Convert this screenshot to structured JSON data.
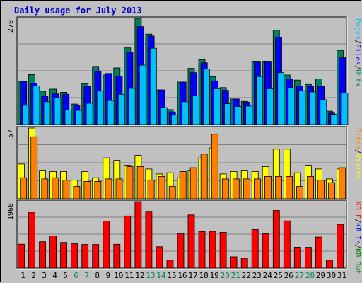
{
  "chart_data": {
    "type": "bar",
    "title": "Daily usage for July 2013",
    "days": [
      "1",
      "2",
      "3",
      "4",
      "5",
      "6",
      "7",
      "8",
      "9",
      "10",
      "11",
      "12",
      "13",
      "14",
      "15",
      "16",
      "17",
      "18",
      "19",
      "20",
      "21",
      "22",
      "23",
      "24",
      "25",
      "26",
      "27",
      "28",
      "29",
      "30",
      "31"
    ],
    "weekend_days": [
      6,
      7,
      13,
      14,
      20,
      21,
      27,
      28
    ],
    "colors": {
      "hits": "#00805c",
      "files": "#0000ff",
      "pages": "#00c0ff",
      "visits": "#ffff00",
      "sites": "#ff8000",
      "kbin": "#0000ff",
      "kbout": "#008000",
      "kbf": "#ff0000",
      "weekend_label": "#00805c",
      "weekday_label": "#000000"
    },
    "panels": [
      {
        "id": "top",
        "ymax_label": "270",
        "ymax": 270,
        "legend": [
          {
            "text": "Pages",
            "color": "#00c0ff"
          },
          {
            "text": "/",
            "color": "#000000"
          },
          {
            "text": "Files",
            "color": "#0000ff"
          },
          {
            "text": "/",
            "color": "#000000"
          },
          {
            "text": "Hits",
            "color": "#00805c"
          }
        ],
        "series": [
          {
            "name": "Hits",
            "color": "#00805c",
            "values": [
              110,
              127,
              85,
              90,
              82,
              52,
              104,
              148,
              126,
              144,
              195,
              270,
              230,
              88,
              38,
              108,
              143,
              165,
              122,
              94,
              65,
              59,
              161,
              161,
              240,
              126,
              113,
              102,
              116,
              34,
              188
            ]
          },
          {
            "name": "Files",
            "color": "#0000ff",
            "values": [
              110,
              105,
              72,
              78,
              77,
              49,
              97,
              136,
              130,
              123,
              184,
              249,
              225,
              88,
              32,
              108,
              132,
              157,
              111,
              87,
              65,
              57,
              161,
              161,
              222,
              116,
              98,
              97,
              97,
              29,
              170
            ]
          },
          {
            "name": "Pages",
            "color": "#00c0ff",
            "values": [
              49,
              98,
              58,
              68,
              37,
              36,
              54,
              85,
              61,
              77,
              92,
              151,
              194,
              43,
              24,
              58,
              73,
              141,
              91,
              53,
              46,
              47,
              122,
              91,
              132,
              93,
              86,
              83,
              63,
              26,
              80
            ]
          }
        ]
      },
      {
        "id": "middle",
        "ymax_label": "57",
        "ymax": 57,
        "legend": [
          {
            "text": "Sites",
            "color": "#ff8000"
          },
          {
            "text": "/",
            "color": "#000000"
          },
          {
            "text": "Visits",
            "color": "#ffff00"
          }
        ],
        "series": [
          {
            "name": "Visits",
            "color": "#ffff00",
            "values": [
              28,
              57,
              23,
              22,
              22,
              15,
              22,
              17,
              33,
              31,
              27,
              35,
              24,
              20,
              21,
              17,
              23,
              33,
              41,
              20,
              22,
              23,
              22,
              26,
              40,
              40,
              21,
              27,
              24,
              16,
              24
            ]
          },
          {
            "name": "Sites",
            "color": "#ff8000",
            "values": [
              17,
              50,
              16,
              17,
              15,
              10,
              14,
              14,
              16,
              16,
              26,
              26,
              15,
              18,
              10,
              22,
              25,
              36,
              52,
              16,
              16,
              16,
              16,
              18,
              18,
              18,
              10,
              18,
              15,
              13,
              25
            ]
          }
        ]
      },
      {
        "id": "bottom",
        "ymax_label": "1968",
        "ymax": 1968,
        "legend": [
          {
            "text": "KB F",
            "color": "#ff0000"
          },
          {
            "text": "/",
            "color": "#000000"
          },
          {
            "text": "KB In",
            "color": "#0000ff"
          },
          {
            "text": "/",
            "color": "#000000"
          },
          {
            "text": "KB Out",
            "color": "#008000"
          }
        ],
        "series": [
          {
            "name": "KB F",
            "color": "#ff0000",
            "values": [
              708,
              1655,
              780,
              950,
              760,
              720,
              700,
              700,
              1395,
              705,
              1542,
              1968,
              1681,
              633,
              235,
              1014,
              1575,
              1084,
              1089,
              1060,
              334,
              295,
              1142,
              1015,
              1705,
              1398,
              620,
              615,
              920,
              233,
              1296
            ]
          }
        ]
      }
    ]
  }
}
